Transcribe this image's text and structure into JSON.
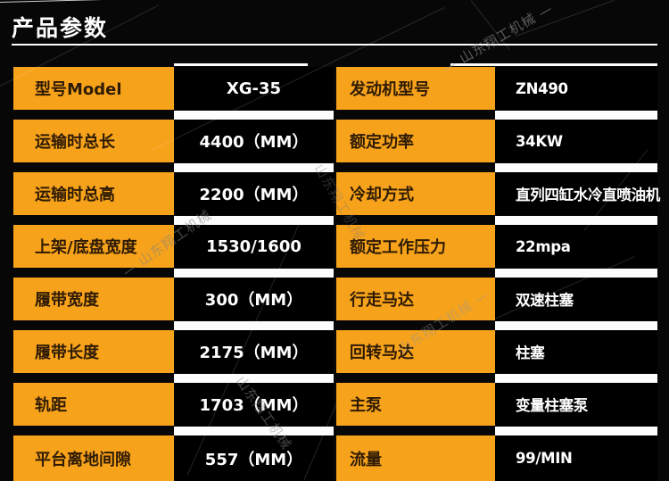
{
  "title": "产品参数",
  "colors": {
    "bg": "#070707",
    "cell_bg": "#000000",
    "orange": "#F7A21B",
    "label_text": "#2E1B04",
    "value_text": "#FFFFFF",
    "separator": "#FDFDFD",
    "watermark_gray": "#9A9A9A"
  },
  "watermarks": {
    "w1": "— 山东翔工机械 —",
    "w2": "— 山东翔工机械",
    "w3": "山东翔工机械 —",
    "w4": "山东翔工机械",
    "w5": "山东翔工机械"
  },
  "table": {
    "rows": [
      {
        "label_left": "型号Model",
        "value_left": "XG-35",
        "label_right": "发动机型号",
        "value_right": "ZN490"
      },
      {
        "label_left": "运输时总长",
        "value_left": "4400（MM）",
        "label_right": "额定功率",
        "value_right": "34KW"
      },
      {
        "label_left": "运输时总高",
        "value_left": "2200（MM）",
        "label_right": "冷却方式",
        "value_right": "直列四缸水冷直喷油机"
      },
      {
        "label_left": "上架/底盘宽度",
        "value_left": "1530/1600",
        "label_right": "额定工作压力",
        "value_right": "22mpa"
      },
      {
        "label_left": "履带宽度",
        "value_left": "300（MM）",
        "label_right": "行走马达",
        "value_right": "双速柱塞"
      },
      {
        "label_left": "履带长度",
        "value_left": "2175（MM）",
        "label_right": "回转马达",
        "value_right": "柱塞"
      },
      {
        "label_left": "轨距",
        "value_left": "1703（MM）",
        "label_right": "主泵",
        "value_right": "变量柱塞泵"
      },
      {
        "label_left": "平台离地间隙",
        "value_left": "557（MM）",
        "label_right": "流量",
        "value_right": "99/MIN"
      }
    ]
  }
}
